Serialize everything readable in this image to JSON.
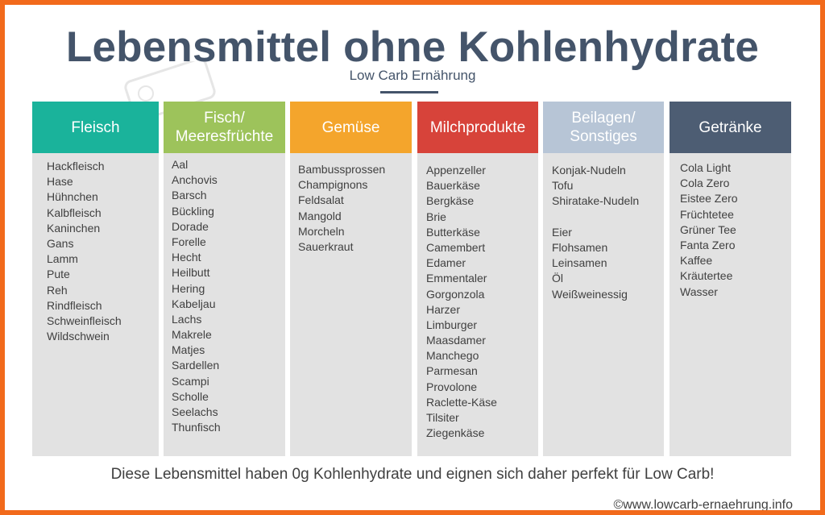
{
  "title": "Lebensmittel ohne Kohlenhydrate",
  "subtitle": "Low Carb Ernährung",
  "footer": "Diese Lebensmittel haben 0g Kohlenhydrate und eignen sich daher perfekt für Low Carb!",
  "copyright": "©www.lowcarb-ernaehrung.info",
  "colors": {
    "frame": "#f26a1b",
    "title": "#44546a",
    "fleisch": "#1ab39b",
    "fisch": "#9dc35b",
    "gemuese": "#f4a52c",
    "milch": "#d7433a",
    "beilagen": "#b7c5d6",
    "getraenke": "#4d5d73",
    "column_bg": "#e2e2e2"
  },
  "columns": [
    {
      "header": "Fleisch",
      "items": [
        "Hackfleisch",
        "Hase",
        "Hühnchen",
        "Kalbfleisch",
        "Kaninchen",
        "Gans",
        "Lamm",
        "Pute",
        "Reh",
        "Rindfleisch",
        "Schweinfleisch",
        "Wildschwein"
      ]
    },
    {
      "header": "Fisch/\nMeeresfrüchte",
      "items": [
        "Aal",
        "Anchovis",
        "Barsch",
        "Bückling",
        "Dorade",
        "Forelle",
        "Hecht",
        "Heilbutt",
        "Hering",
        "Kabeljau",
        "Lachs",
        "Makrele",
        "Matjes",
        "Sardellen",
        "Scampi",
        "Scholle",
        "Seelachs",
        "Thunfisch"
      ]
    },
    {
      "header": "Gemüse",
      "items": [
        "Bambussprossen",
        "Champignons",
        "Feldsalat",
        "Mangold",
        "Morcheln",
        "Sauerkraut"
      ]
    },
    {
      "header": "Milchprodukte",
      "items": [
        "Appenzeller",
        "Bauerkäse",
        "Bergkäse",
        "Brie",
        "Butterkäse",
        "Camembert",
        "Edamer",
        "Emmentaler",
        "Gorgonzola",
        "Harzer",
        "Limburger",
        "Maasdamer",
        "Manchego",
        "Parmesan",
        "Provolone",
        "Raclette-Käse",
        "Tilsiter",
        "Ziegenkäse"
      ]
    },
    {
      "header": "Beilagen/\nSonstiges",
      "items": [
        "Konjak-Nudeln",
        "Tofu",
        "Shiratake-Nudeln",
        "",
        "Eier",
        "Flohsamen",
        "Leinsamen",
        "Öl",
        "Weißweinessig"
      ]
    },
    {
      "header": "Getränke",
      "items": [
        "Cola Light",
        "Cola Zero",
        "Eistee Zero",
        "Früchtetee",
        "Grüner Tee",
        "Fanta Zero",
        "Kaffee",
        "Kräutertee",
        "Wasser"
      ]
    }
  ]
}
